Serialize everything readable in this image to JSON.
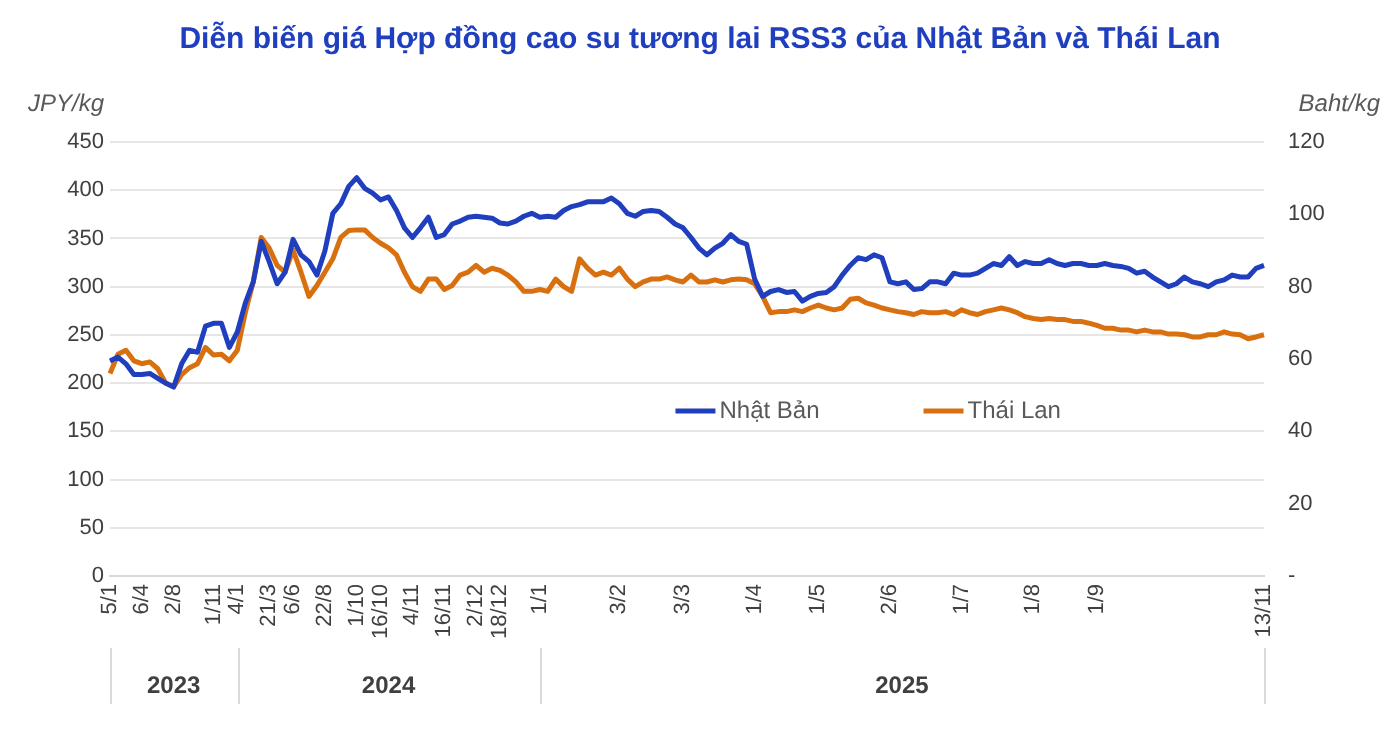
{
  "chart_data": {
    "type": "line",
    "title": "Diễn biến giá Hợp đồng cao su tương lai RSS3 của Nhật Bản và Thái Lan",
    "ylabel": "JPY/kg",
    "y2label": "Baht/kg",
    "annotations": [
      "2023",
      "2024",
      "2025"
    ],
    "categories": [
      "5/1",
      null,
      null,
      null,
      "6/4",
      null,
      null,
      null,
      "2/8",
      null,
      null,
      null,
      null,
      "1/11",
      null,
      null,
      "4/1",
      null,
      null,
      null,
      "21/3",
      null,
      null,
      "6/6",
      null,
      null,
      null,
      "22/8",
      null,
      null,
      null,
      "1/10",
      null,
      null,
      "16/10",
      null,
      null,
      null,
      "4/11",
      null,
      null,
      null,
      "16/11",
      null,
      null,
      null,
      "2/12",
      null,
      null,
      "18/12",
      null,
      null,
      null,
      null,
      "1/1",
      null,
      null,
      null,
      null,
      null,
      null,
      null,
      null,
      null,
      "3/2",
      null,
      null,
      null,
      null,
      null,
      null,
      null,
      "3/3",
      null,
      null,
      null,
      null,
      null,
      null,
      null,
      null,
      "1/4",
      null,
      null,
      null,
      null,
      null,
      null,
      null,
      "1/5",
      null,
      null,
      null,
      null,
      null,
      null,
      null,
      null,
      "2/6",
      null,
      null,
      null,
      null,
      null,
      null,
      null,
      null,
      "1/7",
      null,
      null,
      null,
      null,
      null,
      null,
      null,
      null,
      "1/8",
      null,
      null,
      null,
      null,
      null,
      null,
      null,
      "1/9",
      null,
      null,
      null,
      null,
      null,
      null,
      null,
      null,
      null,
      null,
      null,
      null,
      null,
      null,
      null,
      null,
      null,
      null,
      null,
      null,
      "13/11"
    ],
    "series": [
      {
        "name": "Nhật Bản",
        "color": "#1f3fbf",
        "values": [
          223,
          227,
          220,
          209,
          209,
          210,
          205,
          200,
          196,
          220,
          234,
          232,
          259,
          262,
          262,
          237,
          253,
          283,
          305,
          347,
          326,
          303,
          315,
          349,
          333,
          326,
          312,
          337,
          376,
          386,
          404,
          413,
          402,
          397,
          390,
          393,
          379,
          361,
          351,
          361,
          372,
          351,
          354,
          365,
          368,
          372,
          373,
          372,
          371,
          366,
          365,
          368,
          373,
          376,
          372,
          373,
          372,
          379,
          383,
          385,
          388,
          388,
          388,
          392,
          386,
          376,
          373,
          378,
          379,
          378,
          372,
          365,
          361,
          351,
          340,
          333,
          340,
          345,
          354,
          347,
          344,
          308,
          290,
          295,
          297,
          294,
          295,
          285,
          290,
          293,
          294,
          300,
          312,
          322,
          330,
          328,
          333,
          330,
          305,
          303,
          305,
          297,
          298,
          305,
          305,
          303,
          314,
          312,
          312,
          314,
          319,
          324,
          322,
          331,
          322,
          326,
          324,
          324,
          328,
          324,
          322,
          324,
          324,
          322,
          322,
          324,
          322,
          321,
          319,
          314,
          316,
          310,
          305,
          300,
          303,
          310,
          305,
          303,
          300,
          305,
          307,
          312,
          310,
          310,
          319,
          322
        ]
      },
      {
        "name": "Thái Lan",
        "color": "#d9700f",
        "axis": "y2",
        "values": [
          56.0,
          61.3,
          62.4,
          59.5,
          58.7,
          59.2,
          57.3,
          53.3,
          52.3,
          55.7,
          57.6,
          58.7,
          63.2,
          61.1,
          61.3,
          59.5,
          62.4,
          72.8,
          81.3,
          93.6,
          90.7,
          85.9,
          84.0,
          90.1,
          84.0,
          77.3,
          80.3,
          84.0,
          87.7,
          93.6,
          95.5,
          95.7,
          95.7,
          93.6,
          92.0,
          90.7,
          88.8,
          84.0,
          80.0,
          78.7,
          82.1,
          82.1,
          79.2,
          80.3,
          83.2,
          84.0,
          85.9,
          84.0,
          85.1,
          84.5,
          83.2,
          81.3,
          78.7,
          78.7,
          79.2,
          78.7,
          82.1,
          80.0,
          78.7,
          87.7,
          85.1,
          83.2,
          84.0,
          83.2,
          85.1,
          82.1,
          80.0,
          81.3,
          82.1,
          82.1,
          82.7,
          81.9,
          81.3,
          83.2,
          81.3,
          81.3,
          81.9,
          81.3,
          81.9,
          82.1,
          81.9,
          80.8,
          77.3,
          72.8,
          73.1,
          73.1,
          73.6,
          73.1,
          74.1,
          74.9,
          74.1,
          73.6,
          74.1,
          76.5,
          76.8,
          75.5,
          74.9,
          74.1,
          73.6,
          73.1,
          72.8,
          72.3,
          73.1,
          72.8,
          72.8,
          73.1,
          72.3,
          73.6,
          72.8,
          72.3,
          73.1,
          73.6,
          74.1,
          73.6,
          72.8,
          71.7,
          71.2,
          70.9,
          71.2,
          70.9,
          70.9,
          70.4,
          70.4,
          69.9,
          69.3,
          68.5,
          68.5,
          68.0,
          68.0,
          67.5,
          68.0,
          67.5,
          67.5,
          66.9,
          66.9,
          66.7,
          66.1,
          66.1,
          66.7,
          66.7,
          67.5,
          66.9,
          66.7,
          65.6,
          66.1,
          66.7
        ]
      }
    ],
    "ylim": [
      0,
      450
    ],
    "yticks": [
      0,
      50,
      100,
      150,
      200,
      250,
      300,
      350,
      400,
      450
    ],
    "y2lim": [
      0,
      120
    ],
    "y2ticks": [
      {
        "value": 0,
        "label": "-"
      },
      20,
      40,
      60,
      80,
      100,
      120
    ],
    "grid": "y",
    "legend": "center",
    "marker": "none",
    "line_style": "solid"
  }
}
